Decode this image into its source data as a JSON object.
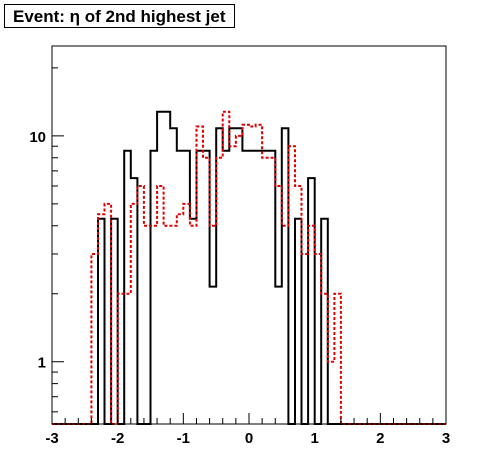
{
  "chart_data": {
    "type": "histogram",
    "title": "Event: η of 2nd highest jet",
    "xlabel": "",
    "ylabel": "",
    "xlim": [
      -3,
      3
    ],
    "ylim": [
      0.53,
      25
    ],
    "yscale": "log",
    "grid": false,
    "legend": "none",
    "bin_edges": [
      -3.0,
      -2.4,
      -2.3,
      -2.2,
      -2.1,
      -2.0,
      -1.9,
      -1.8,
      -1.7,
      -1.6,
      -1.5,
      -1.4,
      -1.3,
      -1.2,
      -1.1,
      -1.0,
      -0.9,
      -0.8,
      -0.7,
      -0.6,
      -0.5,
      -0.4,
      -0.3,
      -0.2,
      -0.1,
      0.0,
      0.1,
      0.2,
      0.3,
      0.4,
      0.5,
      0.6,
      0.7,
      0.8,
      0.9,
      1.0,
      1.1,
      1.2,
      1.3,
      1.4,
      1.5,
      1.6,
      1.7,
      1.8,
      1.9,
      2.0,
      2.1,
      2.2,
      2.3,
      2.4,
      2.5,
      3.0
    ],
    "series": [
      {
        "style": "solid",
        "color": "#000000",
        "values": [
          0,
          0,
          4.3,
          0,
          4.3,
          0,
          8.6,
          6.5,
          0,
          0,
          8.6,
          12.8,
          12.8,
          10.8,
          8.6,
          8.6,
          4.3,
          8.6,
          8.6,
          2.15,
          10.8,
          8.6,
          10.8,
          10.8,
          8.6,
          8.6,
          8.6,
          8.6,
          8.6,
          2.15,
          10.8,
          0,
          4.3,
          0,
          6.5,
          0,
          4.3,
          0,
          0,
          0,
          0,
          0,
          0,
          0,
          0,
          0,
          0,
          0,
          0,
          0,
          0
        ]
      },
      {
        "style": "dotted",
        "color": "#e00000",
        "values": [
          0,
          3.0,
          4.5,
          5.0,
          0,
          2.0,
          2.0,
          5.0,
          6.0,
          4.0,
          4.0,
          6.0,
          4.0,
          4.0,
          4.5,
          5.0,
          4.0,
          11.0,
          8.0,
          4.0,
          8.0,
          12.8,
          9.0,
          10.0,
          11.2,
          11.0,
          11.2,
          8.0,
          8.0,
          6.0,
          4.0,
          9.0,
          6.0,
          3.0,
          4.0,
          3.0,
          2.0,
          1.0,
          2.0,
          0,
          0,
          0,
          0,
          0,
          0,
          0,
          0,
          0,
          0,
          0,
          0
        ]
      }
    ],
    "yticks_labeled": [
      1,
      10
    ],
    "xticks_labeled": [
      "-3",
      "-2",
      "-1",
      "0",
      "1",
      "2",
      "3"
    ]
  }
}
